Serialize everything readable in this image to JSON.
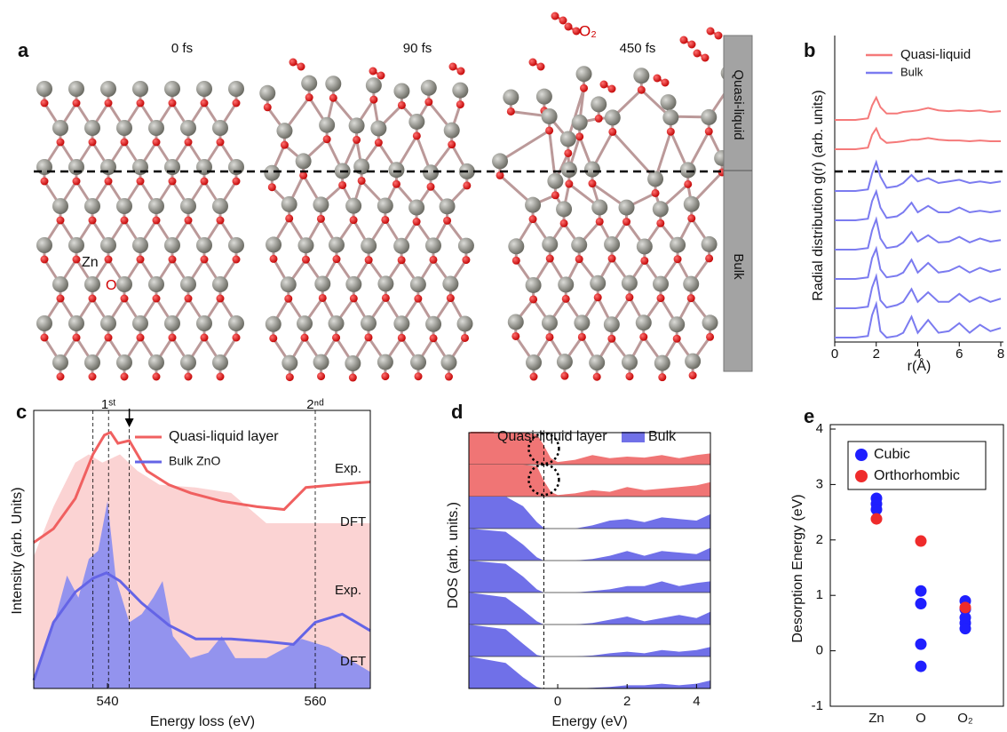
{
  "panel_a": {
    "label": "a",
    "times": [
      "0 fs",
      "90 fs",
      "450 fs"
    ],
    "molecule": "O₂",
    "atoms": [
      "Zn",
      "O"
    ],
    "regions": [
      "Quasi-liquid",
      "Bulk"
    ]
  },
  "chart_data": [
    {
      "type": "offset-line",
      "label": "b",
      "ylabel": "Radial distribution g(r) (arb. units)",
      "xlabel": "r(Å)",
      "xlim": [
        0,
        8
      ],
      "xticks": [
        0,
        2,
        4,
        6,
        8
      ],
      "x": [
        0,
        1,
        1.6,
        1.8,
        2,
        2.2,
        2.5,
        3,
        3.3,
        3.7,
        4,
        4.5,
        5,
        5.5,
        6,
        6.5,
        7,
        7.5,
        8
      ],
      "series": [
        {
          "name": "Quasi-liquid",
          "color": "#f57a7a",
          "curves": [
            [
              0,
              0,
              0.1,
              0.9,
              1.4,
              0.8,
              0.4,
              0.4,
              0.5,
              0.55,
              0.6,
              0.75,
              0.6,
              0.55,
              0.6,
              0.55,
              0.6,
              0.5,
              0.55
            ],
            [
              0,
              0,
              0.1,
              0.9,
              1.3,
              0.7,
              0.4,
              0.45,
              0.5,
              0.6,
              0.6,
              0.7,
              0.6,
              0.55,
              0.55,
              0.5,
              0.55,
              0.5,
              0.5
            ]
          ]
        },
        {
          "name": "Bulk",
          "color": "#7b7bf0",
          "curves": [
            [
              0,
              0,
              0.1,
              1.1,
              1.8,
              0.9,
              0.2,
              0.3,
              0.5,
              1.0,
              0.6,
              0.8,
              0.5,
              0.6,
              0.7,
              0.5,
              0.6,
              0.5,
              0.6
            ],
            [
              0,
              0,
              0.1,
              1.2,
              1.8,
              0.8,
              0.15,
              0.25,
              0.5,
              1.1,
              0.5,
              0.9,
              0.5,
              0.5,
              0.8,
              0.5,
              0.6,
              0.5,
              0.6
            ],
            [
              0,
              0,
              0.1,
              1.2,
              1.9,
              0.7,
              0.1,
              0.2,
              0.45,
              1.1,
              0.5,
              0.9,
              0.45,
              0.5,
              0.8,
              0.45,
              0.7,
              0.5,
              0.6
            ],
            [
              0,
              0,
              0.1,
              1.3,
              1.9,
              0.6,
              0.1,
              0.2,
              0.4,
              1.2,
              0.4,
              1.0,
              0.4,
              0.5,
              0.8,
              0.4,
              0.7,
              0.45,
              0.6
            ],
            [
              0,
              0,
              0.1,
              1.3,
              2.0,
              0.5,
              0.05,
              0.2,
              0.4,
              1.2,
              0.4,
              1.0,
              0.4,
              0.4,
              0.9,
              0.4,
              0.7,
              0.4,
              0.6
            ],
            [
              0,
              0,
              0.1,
              1.4,
              2.1,
              0.4,
              0,
              0.1,
              0.3,
              1.3,
              0.3,
              1.1,
              0.3,
              0.4,
              0.9,
              0.3,
              0.8,
              0.4,
              0.6
            ]
          ]
        }
      ]
    },
    {
      "type": "line",
      "label": "c",
      "xlabel": "Energy loss (eV)",
      "ylabel": "Intensity (arb. Units)",
      "xlim": [
        532.9,
        565.3
      ],
      "xticks": [
        540,
        560
      ],
      "ylim": [
        0,
        10
      ],
      "series": [
        {
          "name": "Quasi-liquid layer",
          "color": "#f06060",
          "label": "Exp.",
          "x": [
            532.9,
            534.8,
            536.9,
            538.6,
            539.7,
            540.3,
            541.0,
            542.1,
            543.8,
            545.9,
            548.0,
            551.0,
            554.4,
            557.0,
            559.1,
            562.1,
            565.3
          ],
          "values": [
            5.3,
            5.8,
            6.9,
            8.5,
            9.2,
            9.3,
            8.9,
            9.0,
            7.9,
            7.4,
            7.1,
            6.8,
            6.6,
            6.5,
            7.3,
            7.4,
            7.5
          ]
        },
        {
          "name": "Bulk ZnO",
          "color": "#6464e6",
          "label": "Exp.",
          "x": [
            532.9,
            534.8,
            536.9,
            538.6,
            539.9,
            541.2,
            543.3,
            545.9,
            548.5,
            551.9,
            555.3,
            557.9,
            560.0,
            562.6,
            565.3
          ],
          "values": [
            0.3,
            2.4,
            3.5,
            4.0,
            4.2,
            3.9,
            3.1,
            2.3,
            1.8,
            1.8,
            1.7,
            1.6,
            2.4,
            2.7,
            2.1
          ]
        }
      ],
      "areas": [
        {
          "color": "#fbd3d3",
          "label": "DFT",
          "x": [
            532.9,
            534.8,
            536.9,
            538.2,
            539.5,
            541.2,
            542.9,
            545.0,
            548.5,
            551.9,
            555.3,
            559.6,
            565.3
          ],
          "values": [
            4.8,
            6.6,
            8.2,
            8.5,
            8.2,
            8.5,
            7.9,
            7.4,
            7.3,
            7.1,
            6.0,
            6.0,
            6.0
          ]
        },
        {
          "color": "#9393ee",
          "label": "DFT",
          "x": [
            532.9,
            534.8,
            536.1,
            537.2,
            538.2,
            539.1,
            540.0,
            540.8,
            542.1,
            543.3,
            544.4,
            545.3,
            546.3,
            548.0,
            549.7,
            551.0,
            552.3,
            555.3,
            558.7,
            561.3,
            565.3
          ],
          "values": [
            0.2,
            2.3,
            4.1,
            3.3,
            4.7,
            5.0,
            6.8,
            4.0,
            2.4,
            2.7,
            3.3,
            3.9,
            1.9,
            1.1,
            1.3,
            1.9,
            1.1,
            1.1,
            1.8,
            1.5,
            0.6
          ]
        }
      ],
      "guides": [
        538.6,
        540.1,
        542.1,
        560
      ],
      "peaks": [
        {
          "value": 540.1,
          "label": "1ˢᵗ"
        },
        {
          "value": 560,
          "label": "2ⁿᵈ"
        }
      ],
      "arrow": 542.1
    },
    {
      "type": "offset-area",
      "label": "d",
      "xlabel": "Energy (eV)",
      "ylabel": "DOS (arb. units.)",
      "xlim": [
        -2.56,
        4.4
      ],
      "xticks": [
        0,
        2,
        4
      ],
      "guide": -0.4,
      "x": [
        -2.56,
        -1.5,
        -1,
        -0.6,
        -0.4,
        -0.2,
        0,
        0.5,
        1,
        1.5,
        2,
        2.5,
        3,
        3.5,
        4,
        4.4
      ],
      "series": [
        {
          "name": "Quasi-liquid layer",
          "color": "#f07575",
          "curves": [
            [
              1,
              1,
              1,
              0.95,
              0.6,
              0.2,
              0.08,
              0.15,
              0.3,
              0.2,
              0.25,
              0.22,
              0.3,
              0.2,
              0.3,
              0.35
            ],
            [
              1,
              1,
              1,
              0.95,
              0.5,
              0.15,
              0.05,
              0.1,
              0.2,
              0.15,
              0.3,
              0.2,
              0.25,
              0.3,
              0.35,
              0.45
            ]
          ]
        },
        {
          "name": "Bulk",
          "color": "#7070e8",
          "curves": [
            [
              1,
              1,
              0.7,
              0.2,
              0.02,
              0,
              0,
              0,
              0.1,
              0.25,
              0.3,
              0.2,
              0.35,
              0.3,
              0.25,
              0.45
            ],
            [
              1,
              0.9,
              0.5,
              0.1,
              0,
              0,
              0,
              0,
              0.05,
              0.15,
              0.3,
              0.15,
              0.3,
              0.25,
              0.2,
              0.4
            ],
            [
              1,
              0.9,
              0.5,
              0.1,
              0,
              0,
              0,
              0,
              0.05,
              0.1,
              0.2,
              0.2,
              0.35,
              0.2,
              0.3,
              0.35
            ],
            [
              1,
              0.85,
              0.45,
              0.1,
              0,
              0,
              0,
              0,
              0.05,
              0.15,
              0.25,
              0.1,
              0.2,
              0.3,
              0.2,
              0.4
            ],
            [
              1,
              0.85,
              0.4,
              0.05,
              0,
              0,
              0,
              0,
              0.03,
              0.1,
              0.15,
              0.1,
              0.2,
              0.15,
              0.2,
              0.3
            ],
            [
              1,
              0.8,
              0.35,
              0.05,
              0,
              0,
              0,
              0,
              0.02,
              0.05,
              0.1,
              0.1,
              0.15,
              0.1,
              0.15,
              0.25
            ]
          ]
        }
      ]
    },
    {
      "type": "scatter",
      "label": "e",
      "ylabel": "Desorption Energy (eV)",
      "categories": [
        "Zn",
        "O",
        "O₂"
      ],
      "ylim": [
        -1,
        4
      ],
      "yticks": [
        -1,
        0,
        1,
        2,
        3,
        4
      ],
      "series": [
        {
          "name": "Cubic",
          "color": "#1f1fff",
          "x": [
            "Zn",
            "Zn",
            "Zn",
            "O",
            "O",
            "O",
            "O",
            "O₂",
            "O₂",
            "O₂",
            "O₂",
            "O₂"
          ],
          "values": [
            2.75,
            2.65,
            2.55,
            1.08,
            0.85,
            0.12,
            -0.28,
            0.9,
            0.75,
            0.6,
            0.5,
            0.4
          ]
        },
        {
          "name": "Orthorhombic",
          "color": "#ef2b2b",
          "x": [
            "Zn",
            "O",
            "O₂"
          ],
          "values": [
            2.38,
            1.98,
            0.78
          ]
        }
      ]
    }
  ]
}
